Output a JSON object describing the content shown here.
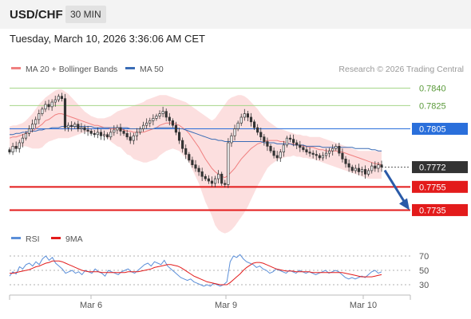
{
  "header": {
    "pair": "USD/CHF",
    "timeframe": "30 MIN",
    "datetime": "Tuesday, March 10, 2026 3:36:06 AM CET"
  },
  "colors": {
    "bollinger_fill": "#fcdcdc",
    "ma20": "#f08080",
    "ma50": "#3a6cb5",
    "resistance": "#a6d68a",
    "support": "#e31b1b",
    "pivot": "#2a6fdb",
    "current": "#333333",
    "arrow": "#2a5aa8",
    "rsi": "#5b8fd9",
    "rsi_ma": "#e31b1b",
    "candle_up": "#3a3a3a",
    "candle_down": "#3a3a3a"
  },
  "chart_data": [
    {
      "type": "candlestick",
      "legend": [
        {
          "label": "MA 20 + Bollinger Bands",
          "color": "#f08080"
        },
        {
          "label": "MA 50",
          "color": "#3a6cb5"
        }
      ],
      "legend_position": "top-left",
      "watermark": "Research © 2026 Trading Central",
      "x_ticks": [
        "Mar 6",
        "Mar 9",
        "Mar 10"
      ],
      "ylim": [
        0.7725,
        0.785
      ],
      "grid": false,
      "levels": [
        {
          "value": 0.784,
          "label": "0.7840",
          "kind": "resistance"
        },
        {
          "value": 0.7825,
          "label": "0.7825",
          "kind": "resistance"
        },
        {
          "value": 0.7805,
          "label": "0.7805",
          "kind": "pivot"
        },
        {
          "value": 0.7772,
          "label": "0.7772",
          "kind": "current"
        },
        {
          "value": 0.7755,
          "label": "0.7755",
          "kind": "support"
        },
        {
          "value": 0.7735,
          "label": "0.7735",
          "kind": "support"
        }
      ],
      "close": [
        0.7785,
        0.779,
        0.7788,
        0.7793,
        0.7797,
        0.7801,
        0.7805,
        0.7809,
        0.7813,
        0.7818,
        0.7822,
        0.7826,
        0.7824,
        0.7828,
        0.783,
        0.7833,
        0.7831,
        0.7806,
        0.7808,
        0.7807,
        0.7809,
        0.7805,
        0.7806,
        0.7804,
        0.7803,
        0.7801,
        0.78,
        0.7802,
        0.7799,
        0.78,
        0.7798,
        0.7802,
        0.7804,
        0.7806,
        0.7803,
        0.7801,
        0.7798,
        0.7795,
        0.7799,
        0.7802,
        0.7805,
        0.7808,
        0.781,
        0.7812,
        0.7814,
        0.7816,
        0.7818,
        0.782,
        0.7815,
        0.7812,
        0.7808,
        0.7802,
        0.7795,
        0.7788,
        0.7783,
        0.7778,
        0.7774,
        0.7771,
        0.7768,
        0.7764,
        0.7762,
        0.776,
        0.7758,
        0.7762,
        0.7766,
        0.7758,
        0.7757,
        0.7793,
        0.7799,
        0.7805,
        0.781,
        0.7815,
        0.7818,
        0.7815,
        0.7811,
        0.7806,
        0.7802,
        0.7798,
        0.7794,
        0.779,
        0.7786,
        0.7782,
        0.778,
        0.7785,
        0.7791,
        0.7797,
        0.7796,
        0.7793,
        0.7791,
        0.7789,
        0.7787,
        0.7785,
        0.7784,
        0.7783,
        0.7782,
        0.778,
        0.7782,
        0.7784,
        0.7786,
        0.7788,
        0.779,
        0.7784,
        0.7779,
        0.7775,
        0.7772,
        0.7769,
        0.7771,
        0.7768,
        0.777,
        0.7766,
        0.7769,
        0.7773,
        0.7771,
        0.7774,
        0.7772
      ],
      "ma20": [
        0.7797,
        0.7798,
        0.7798,
        0.7799,
        0.78,
        0.7801,
        0.7802,
        0.7803,
        0.7805,
        0.7807,
        0.7809,
        0.7812,
        0.7813,
        0.7815,
        0.7817,
        0.7818,
        0.7818,
        0.7817,
        0.7816,
        0.7815,
        0.7814,
        0.7813,
        0.7812,
        0.7811,
        0.781,
        0.7809,
        0.7808,
        0.7808,
        0.7807,
        0.7806,
        0.7806,
        0.7805,
        0.7805,
        0.7805,
        0.7805,
        0.7804,
        0.7803,
        0.7803,
        0.7802,
        0.7802,
        0.7802,
        0.7802,
        0.7803,
        0.7804,
        0.7805,
        0.7806,
        0.7808,
        0.7809,
        0.781,
        0.781,
        0.781,
        0.7809,
        0.7808,
        0.7806,
        0.7804,
        0.7801,
        0.7797,
        0.7793,
        0.7789,
        0.7784,
        0.7779,
        0.7775,
        0.7771,
        0.7768,
        0.7766,
        0.7764,
        0.7763,
        0.7765,
        0.7768,
        0.7771,
        0.7775,
        0.7779,
        0.7782,
        0.7785,
        0.7788,
        0.779,
        0.7792,
        0.7793,
        0.7794,
        0.7795,
        0.7795,
        0.7795,
        0.7795,
        0.7794,
        0.7794,
        0.7793,
        0.7792,
        0.7792,
        0.7791,
        0.7791,
        0.779,
        0.779,
        0.7789,
        0.7789,
        0.7788,
        0.7787,
        0.7787,
        0.7786,
        0.7786,
        0.7786,
        0.7786,
        0.7785,
        0.7785,
        0.7784,
        0.7783,
        0.7782,
        0.7781,
        0.778,
        0.7779,
        0.7778,
        0.7777,
        0.7776,
        0.7775,
        0.7775,
        0.7774
      ],
      "bb_upper": [
        0.7807,
        0.7808,
        0.7808,
        0.7809,
        0.781,
        0.7812,
        0.7815,
        0.7818,
        0.7822,
        0.7826,
        0.7829,
        0.7832,
        0.7834,
        0.7836,
        0.7838,
        0.7839,
        0.7839,
        0.7837,
        0.7835,
        0.7832,
        0.7829,
        0.7826,
        0.7823,
        0.782,
        0.7818,
        0.7816,
        0.7815,
        0.7814,
        0.7814,
        0.7814,
        0.7815,
        0.7816,
        0.7818,
        0.782,
        0.7821,
        0.7822,
        0.7823,
        0.7824,
        0.7825,
        0.7826,
        0.7827,
        0.7828,
        0.783,
        0.7831,
        0.7832,
        0.7833,
        0.7834,
        0.7834,
        0.7834,
        0.7833,
        0.7832,
        0.7831,
        0.783,
        0.7829,
        0.7828,
        0.7826,
        0.7824,
        0.7822,
        0.782,
        0.7818,
        0.7816,
        0.7814,
        0.7812,
        0.7814,
        0.7818,
        0.7822,
        0.7826,
        0.783,
        0.7832,
        0.7833,
        0.7834,
        0.7834,
        0.7833,
        0.7831,
        0.7828,
        0.7825,
        0.7822,
        0.7818,
        0.7815,
        0.7812,
        0.781,
        0.7808,
        0.7806,
        0.7805,
        0.7804,
        0.7803,
        0.7802,
        0.7801,
        0.78,
        0.78,
        0.7799,
        0.7799,
        0.7798,
        0.7798,
        0.7798,
        0.7798,
        0.7797,
        0.7796,
        0.7795,
        0.7794,
        0.7793,
        0.7792,
        0.7791,
        0.779,
        0.7789,
        0.7788,
        0.7787,
        0.7786,
        0.7786,
        0.7786,
        0.7786,
        0.7786,
        0.7786,
        0.7786,
        0.7786
      ],
      "bb_lower": [
        0.7787,
        0.7788,
        0.7788,
        0.7789,
        0.779,
        0.779,
        0.7789,
        0.7788,
        0.7788,
        0.7788,
        0.7789,
        0.7792,
        0.7794,
        0.7795,
        0.7796,
        0.7797,
        0.7797,
        0.7797,
        0.7797,
        0.7798,
        0.7799,
        0.78,
        0.7801,
        0.7802,
        0.7802,
        0.7802,
        0.7801,
        0.7802,
        0.78,
        0.7798,
        0.7797,
        0.7794,
        0.7792,
        0.779,
        0.7789,
        0.7786,
        0.7783,
        0.7782,
        0.7779,
        0.7778,
        0.7777,
        0.7776,
        0.7776,
        0.7777,
        0.7778,
        0.7779,
        0.7782,
        0.7784,
        0.7786,
        0.7787,
        0.7788,
        0.7787,
        0.7786,
        0.7783,
        0.778,
        0.7776,
        0.777,
        0.7764,
        0.7758,
        0.775,
        0.7742,
        0.7736,
        0.773,
        0.7722,
        0.7718,
        0.7716,
        0.7715,
        0.7716,
        0.7718,
        0.7721,
        0.7725,
        0.7729,
        0.7733,
        0.7738,
        0.7744,
        0.775,
        0.7756,
        0.7761,
        0.7766,
        0.7771,
        0.7774,
        0.7776,
        0.7778,
        0.7779,
        0.778,
        0.7781,
        0.7781,
        0.7782,
        0.7781,
        0.7781,
        0.778,
        0.778,
        0.7779,
        0.7779,
        0.7778,
        0.7777,
        0.7776,
        0.7775,
        0.7774,
        0.7773,
        0.7772,
        0.7771,
        0.777,
        0.7769,
        0.7768,
        0.7767,
        0.7766,
        0.7765,
        0.7764,
        0.7763,
        0.7762,
        0.7762,
        0.7762,
        0.7762,
        0.7762
      ],
      "ma50": [
        0.78,
        0.78,
        0.7801,
        0.7801,
        0.7802,
        0.7802,
        0.7803,
        0.7803,
        0.7803,
        0.7804,
        0.7804,
        0.7805,
        0.7805,
        0.7806,
        0.7806,
        0.7806,
        0.7807,
        0.7807,
        0.7807,
        0.7807,
        0.7807,
        0.7807,
        0.7807,
        0.7807,
        0.7807,
        0.7807,
        0.7806,
        0.7806,
        0.7806,
        0.7806,
        0.7806,
        0.7806,
        0.7806,
        0.7806,
        0.7806,
        0.7806,
        0.7806,
        0.7805,
        0.7805,
        0.7805,
        0.7805,
        0.7805,
        0.7805,
        0.7805,
        0.7805,
        0.7806,
        0.7806,
        0.7806,
        0.7806,
        0.7806,
        0.7806,
        0.7806,
        0.7805,
        0.7805,
        0.7804,
        0.7803,
        0.7802,
        0.7801,
        0.78,
        0.7799,
        0.7798,
        0.7797,
        0.7796,
        0.7796,
        0.7795,
        0.7795,
        0.7794,
        0.7794,
        0.7794,
        0.7794,
        0.7794,
        0.7794,
        0.7794,
        0.7794,
        0.7794,
        0.7794,
        0.7794,
        0.7794,
        0.7793,
        0.7793,
        0.7793,
        0.7793,
        0.7792,
        0.7792,
        0.7792,
        0.7792,
        0.7792,
        0.7791,
        0.7791,
        0.7791,
        0.7791,
        0.779,
        0.779,
        0.779,
        0.779,
        0.779,
        0.7789,
        0.7789,
        0.7789,
        0.7789,
        0.7789,
        0.7789,
        0.7789,
        0.7789,
        0.7789,
        0.7789,
        0.7788,
        0.7788,
        0.7788,
        0.7788,
        0.7788,
        0.7787,
        0.7787,
        0.7786,
        0.7786
      ]
    },
    {
      "type": "line",
      "legend": [
        {
          "label": "RSI",
          "color": "#5b8fd9"
        },
        {
          "label": "9MA",
          "color": "#e31b1b"
        }
      ],
      "legend_position": "top-left",
      "y_ticks": [
        "70",
        "50",
        "30"
      ],
      "ylim": [
        20,
        80
      ],
      "rsi": [
        42,
        48,
        45,
        55,
        52,
        58,
        60,
        56,
        62,
        58,
        66,
        70,
        64,
        68,
        60,
        56,
        52,
        46,
        48,
        50,
        46,
        48,
        44,
        50,
        48,
        46,
        52,
        48,
        46,
        42,
        50,
        48,
        46,
        44,
        48,
        50,
        52,
        48,
        46,
        50,
        54,
        58,
        60,
        56,
        62,
        60,
        58,
        64,
        56,
        52,
        48,
        44,
        40,
        38,
        36,
        38,
        34,
        32,
        30,
        28,
        30,
        28,
        32,
        30,
        28,
        30,
        34,
        62,
        70,
        68,
        72,
        66,
        62,
        60,
        58,
        54,
        56,
        52,
        50,
        46,
        48,
        52,
        50,
        48,
        46,
        50,
        48,
        46,
        50,
        48,
        46,
        48,
        46,
        44,
        46,
        48,
        50,
        46,
        48,
        50,
        48,
        44,
        40,
        38,
        40,
        38,
        40,
        42,
        40,
        44,
        48,
        50,
        46,
        48
      ],
      "ma9": [
        46,
        46,
        47,
        48,
        49,
        50,
        51,
        53,
        55,
        56,
        58,
        60,
        61,
        63,
        63,
        63,
        62,
        60,
        58,
        56,
        54,
        52,
        50,
        49,
        48,
        48,
        48,
        48,
        47,
        47,
        47,
        47,
        47,
        47,
        47,
        47,
        48,
        48,
        48,
        48,
        49,
        50,
        51,
        52,
        54,
        55,
        56,
        57,
        58,
        58,
        57,
        56,
        54,
        51,
        48,
        45,
        42,
        40,
        38,
        36,
        34,
        33,
        32,
        31,
        30,
        30,
        30,
        33,
        37,
        41,
        45,
        50,
        54,
        57,
        60,
        61,
        61,
        60,
        58,
        56,
        54,
        52,
        51,
        50,
        49,
        49,
        49,
        48,
        48,
        48,
        48,
        48,
        47,
        47,
        47,
        47,
        47,
        47,
        47,
        47,
        47,
        47,
        46,
        45,
        44,
        43,
        42,
        41,
        41,
        41,
        41,
        42,
        43,
        44
      ]
    }
  ]
}
